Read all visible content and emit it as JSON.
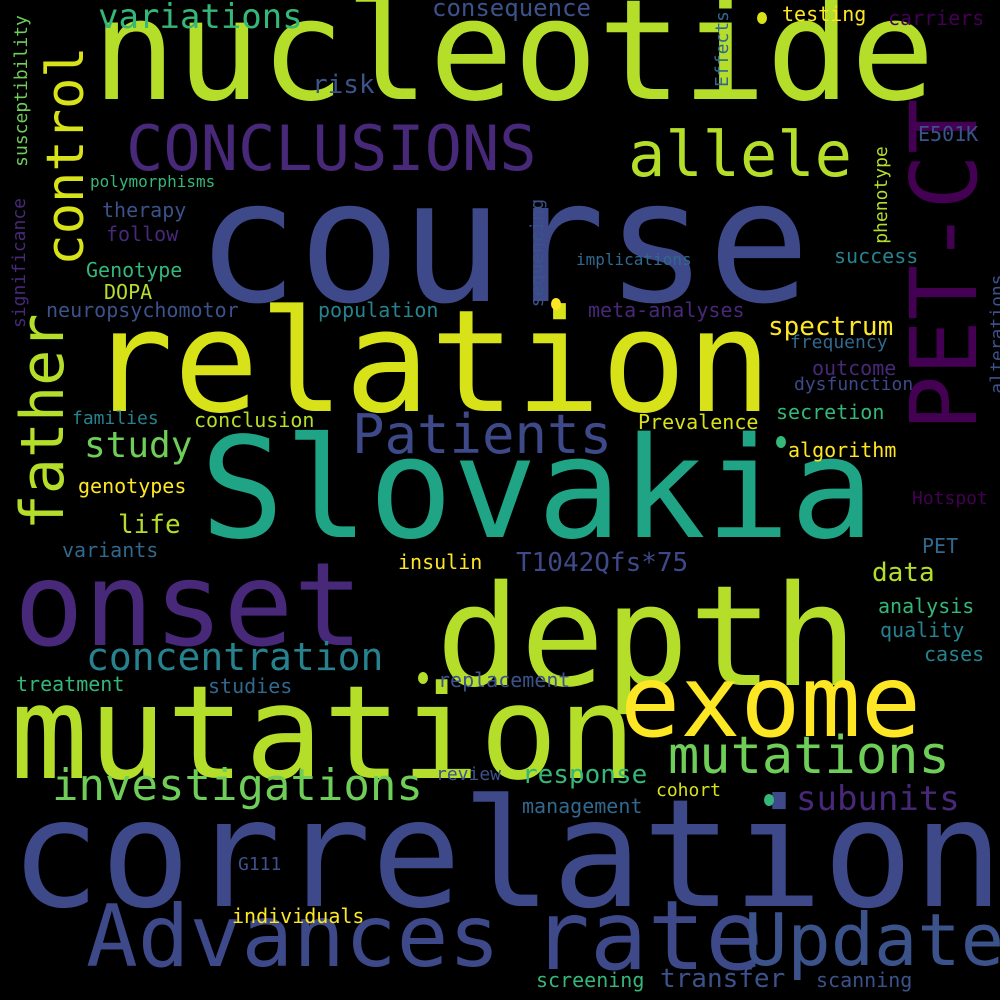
{
  "background": "#000000",
  "words": [
    {
      "key": "w1",
      "text": "nucleotide"
    },
    {
      "key": "w2",
      "text": "course"
    },
    {
      "key": "w3",
      "text": "relation"
    },
    {
      "key": "w4",
      "text": "Slovakia"
    },
    {
      "key": "w5",
      "text": "correlation"
    },
    {
      "key": "w6",
      "text": "mutation"
    },
    {
      "key": "w7",
      "text": "depth"
    },
    {
      "key": "w8",
      "text": "onset"
    },
    {
      "key": "w9",
      "text": "exome"
    },
    {
      "key": "w10",
      "text": "Advances"
    },
    {
      "key": "w11",
      "text": "rate"
    },
    {
      "key": "w12",
      "text": "Update"
    },
    {
      "key": "w13",
      "text": "PET-CT"
    },
    {
      "key": "w14",
      "text": "CONCLUSIONS"
    },
    {
      "key": "w15",
      "text": "allele"
    },
    {
      "key": "w16",
      "text": "Patients"
    },
    {
      "key": "w17",
      "text": "father"
    },
    {
      "key": "w18",
      "text": "control"
    },
    {
      "key": "w19",
      "text": "mutations"
    },
    {
      "key": "w20",
      "text": "investigations"
    },
    {
      "key": "w21",
      "text": "concentration"
    },
    {
      "key": "w22",
      "text": "variations"
    },
    {
      "key": "w23",
      "text": "subunits"
    },
    {
      "key": "w24",
      "text": "study"
    },
    {
      "key": "w25",
      "text": "spectrum"
    },
    {
      "key": "w26",
      "text": "response"
    },
    {
      "key": "w27",
      "text": "T1042Qfs*75"
    },
    {
      "key": "w28",
      "text": "transfer"
    },
    {
      "key": "w29",
      "text": "consequence"
    },
    {
      "key": "w30",
      "text": "risk"
    },
    {
      "key": "w31",
      "text": "life"
    },
    {
      "key": "w32",
      "text": "data"
    },
    {
      "key": "w33",
      "text": "outcome"
    },
    {
      "key": "w34",
      "text": "secretion"
    },
    {
      "key": "w35",
      "text": "conclusion"
    },
    {
      "key": "w36",
      "text": "Prevalence"
    },
    {
      "key": "w37",
      "text": "population"
    },
    {
      "key": "w38",
      "text": "neuropsychomotor"
    },
    {
      "key": "w39",
      "text": "meta-analyses"
    },
    {
      "key": "w40",
      "text": "success"
    },
    {
      "key": "w41",
      "text": "testing"
    },
    {
      "key": "w42",
      "text": "carriers"
    },
    {
      "key": "w43",
      "text": "E501K"
    },
    {
      "key": "w44",
      "text": "therapy"
    },
    {
      "key": "w45",
      "text": "follow"
    },
    {
      "key": "w46",
      "text": "Genotype"
    },
    {
      "key": "w47",
      "text": "DOPA"
    },
    {
      "key": "w48",
      "text": "genotypes"
    },
    {
      "key": "w49",
      "text": "variants"
    },
    {
      "key": "w50",
      "text": "insulin"
    },
    {
      "key": "w51",
      "text": "families"
    },
    {
      "key": "w52",
      "text": "treatment"
    },
    {
      "key": "w53",
      "text": "studies"
    },
    {
      "key": "w54",
      "text": "replacement"
    },
    {
      "key": "w55",
      "text": "review"
    },
    {
      "key": "w56",
      "text": "management"
    },
    {
      "key": "w57",
      "text": "cohort"
    },
    {
      "key": "w58",
      "text": "individuals"
    },
    {
      "key": "w59",
      "text": "screening"
    },
    {
      "key": "w60",
      "text": "scanning"
    },
    {
      "key": "w61",
      "text": "G111"
    },
    {
      "key": "w62",
      "text": "analysis"
    },
    {
      "key": "w63",
      "text": "quality"
    },
    {
      "key": "w64",
      "text": "cases"
    },
    {
      "key": "w65",
      "text": "PET"
    },
    {
      "key": "w66",
      "text": "Hotspot"
    },
    {
      "key": "w67",
      "text": "algorithm"
    },
    {
      "key": "w68",
      "text": "dysfunction"
    },
    {
      "key": "w69",
      "text": "frequency"
    },
    {
      "key": "w70",
      "text": "implications"
    },
    {
      "key": "w71",
      "text": "polymorphisms"
    },
    {
      "key": "w72",
      "text": "susceptibility"
    },
    {
      "key": "w73",
      "text": "significance"
    },
    {
      "key": "w74",
      "text": "Effects"
    },
    {
      "key": "w75",
      "text": "sequencing"
    },
    {
      "key": "w76",
      "text": "phenotype"
    },
    {
      "key": "w77",
      "text": "alterations"
    }
  ],
  "colors": {
    "yellow": "#fde725",
    "yellow_green": "#b5de2b",
    "light_green": "#6ece58",
    "green": "#35b779",
    "teal": "#1f9e89",
    "blue_teal": "#26828e",
    "blue": "#31688e",
    "indigo": "#3e4989",
    "purple": "#482878",
    "dark_purple": "#440154"
  }
}
